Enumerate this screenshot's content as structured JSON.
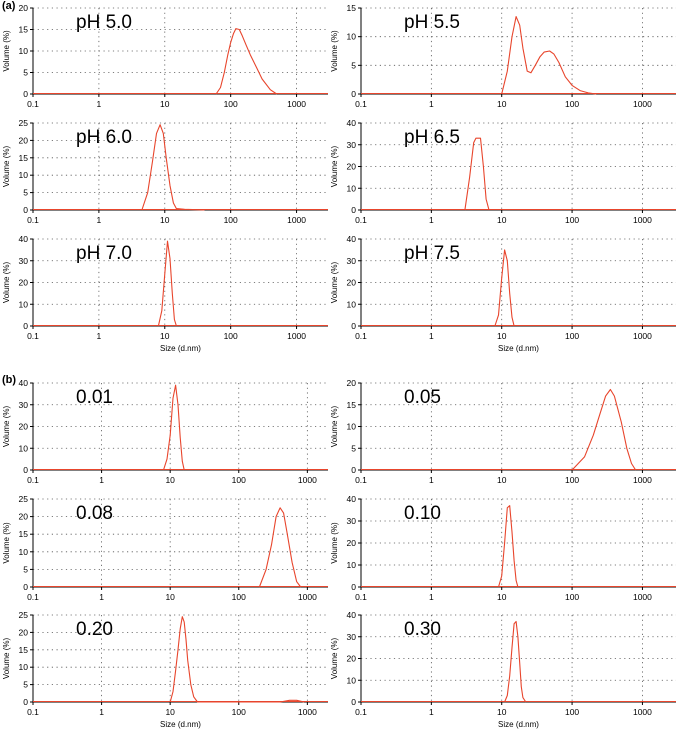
{
  "figure": {
    "panel_labels": [
      "(a)",
      "(b)"
    ],
    "xlabel": "Size (d.nm)",
    "ylabel": "Volume (%)"
  },
  "colors": {
    "curve": "#e8452c",
    "axis": "#000000",
    "grid": "#555555"
  },
  "chart_data": [
    {
      "type": "line",
      "panel": "(a)",
      "title": "pH 5.0",
      "xscale": "log",
      "xlim": [
        0.1,
        3000
      ],
      "xticks": [
        "0.1",
        "1",
        "10",
        "100",
        "1000"
      ],
      "yticks": [
        "0",
        "5",
        "10",
        "15",
        "20"
      ],
      "ylim": [
        0,
        20
      ],
      "xlabel": "",
      "ylabel": "Volume (%)",
      "grid": true,
      "x": [
        60,
        70,
        80,
        90,
        100,
        110,
        120,
        135,
        150,
        170,
        200,
        250,
        300,
        400,
        500
      ],
      "y": [
        0,
        1.5,
        5,
        9,
        12,
        14,
        15.2,
        15,
        13.5,
        11.5,
        9,
        6,
        3.5,
        1,
        0
      ]
    },
    {
      "type": "line",
      "panel": "(a)",
      "title": "pH 5.5",
      "xscale": "log",
      "xlim": [
        0.1,
        3000
      ],
      "xticks": [
        "0.1",
        "1",
        "10",
        "100",
        "1000"
      ],
      "yticks": [
        "0",
        "5",
        "10",
        "15"
      ],
      "ylim": [
        0,
        15
      ],
      "xlabel": "",
      "ylabel": "Volume (%)",
      "grid": true,
      "x": [
        10,
        12,
        14,
        16,
        18,
        20,
        23,
        26,
        30,
        35,
        40,
        48,
        55,
        65,
        80,
        100,
        130,
        170,
        220
      ],
      "y": [
        0,
        4,
        10,
        13.5,
        12,
        8,
        4,
        3.7,
        5,
        6.5,
        7.3,
        7.5,
        7,
        5.5,
        3,
        1.5,
        0.6,
        0.2,
        0
      ]
    },
    {
      "type": "line",
      "panel": "(a)",
      "title": "pH 6.0",
      "xscale": "log",
      "xlim": [
        0.1,
        3000
      ],
      "xticks": [
        "0.1",
        "1",
        "10",
        "100",
        "1000"
      ],
      "yticks": [
        "0",
        "5",
        "10",
        "15",
        "20",
        "25"
      ],
      "ylim": [
        0,
        25
      ],
      "xlabel": "",
      "ylabel": "Volume (%)",
      "grid": true,
      "x": [
        4.5,
        5.5,
        6.5,
        7.5,
        8.5,
        9.5,
        10.5,
        12,
        13.5,
        15,
        20,
        30,
        40
      ],
      "y": [
        0,
        5,
        14,
        22,
        24.5,
        22,
        15,
        7,
        2,
        0.4,
        0.2,
        0.1,
        0
      ]
    },
    {
      "type": "line",
      "panel": "(a)",
      "title": "pH 6.5",
      "xscale": "log",
      "xlim": [
        0.1,
        3000
      ],
      "xticks": [
        "0.1",
        "1",
        "10",
        "100",
        "1000"
      ],
      "yticks": [
        "0",
        "10",
        "20",
        "30",
        "40"
      ],
      "ylim": [
        0,
        40
      ],
      "xlabel": "",
      "ylabel": "Volume (%)",
      "grid": true,
      "x": [
        3,
        3.5,
        4,
        4.3,
        5,
        5.5,
        6,
        6.6
      ],
      "y": [
        0,
        15,
        31,
        33,
        33,
        20,
        5,
        0
      ]
    },
    {
      "type": "line",
      "panel": "(a)",
      "title": "pH 7.0",
      "xscale": "log",
      "xlim": [
        0.1,
        3000
      ],
      "xticks": [
        "0.1",
        "1",
        "10",
        "100",
        "1000"
      ],
      "yticks": [
        "0",
        "10",
        "20",
        "30",
        "40"
      ],
      "ylim": [
        0,
        40
      ],
      "xlabel": "Size (d.nm)",
      "ylabel": "Volume (%)",
      "grid": true,
      "x": [
        8,
        9,
        10,
        11,
        12,
        13,
        14,
        15
      ],
      "y": [
        0,
        7,
        24,
        39,
        31,
        15,
        3,
        0
      ]
    },
    {
      "type": "line",
      "panel": "(a)",
      "title": "pH 7.5",
      "xscale": "log",
      "xlim": [
        0.1,
        3000
      ],
      "xticks": [
        "0.1",
        "1",
        "10",
        "100",
        "1000"
      ],
      "yticks": [
        "0",
        "10",
        "20",
        "30",
        "40"
      ],
      "ylim": [
        0,
        40
      ],
      "xlabel": "Size (d.nm)",
      "ylabel": "Volume (%)",
      "grid": true,
      "x": [
        8,
        9,
        10,
        11,
        12,
        13,
        14,
        15
      ],
      "y": [
        0,
        5,
        22,
        35,
        30,
        15,
        4,
        0
      ]
    },
    {
      "type": "line",
      "panel": "(b)",
      "title": "0.01",
      "xscale": "log",
      "xlim": [
        0.1,
        2000
      ],
      "xticks": [
        "0.1",
        "1",
        "10",
        "100",
        "1000"
      ],
      "yticks": [
        "0",
        "10",
        "20",
        "30",
        "40"
      ],
      "ylim": [
        0,
        40
      ],
      "xlabel": "",
      "ylabel": "Volume (%)",
      "grid": true,
      "x": [
        8,
        9,
        10,
        11,
        12,
        13,
        14,
        15,
        16
      ],
      "y": [
        0,
        5,
        16,
        33,
        39,
        30,
        15,
        4,
        0
      ]
    },
    {
      "type": "line",
      "panel": "(b)",
      "title": "0.05",
      "xscale": "log",
      "xlim": [
        0.1,
        3000
      ],
      "xticks": [
        "0.1",
        "1",
        "10",
        "100",
        "1000"
      ],
      "yticks": [
        "0",
        "5",
        "10",
        "15",
        "20"
      ],
      "ylim": [
        0,
        20
      ],
      "xlabel": "",
      "ylabel": "Volume (%)",
      "grid": true,
      "x": [
        100,
        150,
        200,
        250,
        300,
        350,
        400,
        500,
        600,
        700,
        800
      ],
      "y": [
        0,
        3,
        8,
        13,
        17,
        18.5,
        17,
        11,
        5,
        1.5,
        0
      ]
    },
    {
      "type": "line",
      "panel": "(b)",
      "title": "0.08",
      "xscale": "log",
      "xlim": [
        0.1,
        2000
      ],
      "xticks": [
        "0.1",
        "1",
        "10",
        "100",
        "1000"
      ],
      "yticks": [
        "0",
        "5",
        "10",
        "15",
        "20",
        "25"
      ],
      "ylim": [
        0,
        25
      ],
      "xlabel": "",
      "ylabel": "Volume (%)",
      "grid": true,
      "x": [
        200,
        250,
        300,
        350,
        400,
        450,
        500,
        600,
        700,
        800
      ],
      "y": [
        0,
        5,
        12,
        20,
        22.5,
        21,
        16,
        7,
        1.5,
        0
      ]
    },
    {
      "type": "line",
      "panel": "(b)",
      "title": "0.10",
      "xscale": "log",
      "xlim": [
        0.1,
        3000
      ],
      "xticks": [
        "0.1",
        "1",
        "10",
        "100",
        "1000"
      ],
      "yticks": [
        "0",
        "10",
        "20",
        "30",
        "40"
      ],
      "ylim": [
        0,
        40
      ],
      "xlabel": "",
      "ylabel": "Volume (%)",
      "grid": true,
      "x": [
        9,
        10,
        11,
        12,
        13,
        14,
        15,
        16,
        17
      ],
      "y": [
        0,
        5,
        20,
        36,
        37,
        25,
        12,
        3,
        0
      ]
    },
    {
      "type": "line",
      "panel": "(b)",
      "title": "0.20",
      "xscale": "log",
      "xlim": [
        0.1,
        2000
      ],
      "xticks": [
        "0.1",
        "1",
        "10",
        "100",
        "1000"
      ],
      "yticks": [
        "0",
        "5",
        "10",
        "15",
        "20",
        "25"
      ],
      "ylim": [
        0,
        25
      ],
      "xlabel": "Size (d.nm)",
      "ylabel": "Volume (%)",
      "grid": true,
      "x": [
        10,
        11,
        12,
        13,
        14,
        15,
        16,
        17,
        18,
        20,
        22,
        25,
        400,
        550,
        700,
        900
      ],
      "y": [
        0,
        3,
        9,
        15,
        21,
        24.5,
        23,
        18,
        12,
        5,
        1.5,
        0,
        0,
        0.5,
        0.5,
        0
      ]
    },
    {
      "type": "line",
      "panel": "(b)",
      "title": "0.30",
      "xscale": "log",
      "xlim": [
        0.1,
        3000
      ],
      "xticks": [
        "0.1",
        "1",
        "10",
        "100",
        "1000"
      ],
      "yticks": [
        "0",
        "10",
        "20",
        "30",
        "40"
      ],
      "ylim": [
        0,
        40
      ],
      "xlabel": "Size (d.nm)",
      "ylabel": "Volume (%)",
      "grid": true,
      "x": [
        11,
        12,
        13,
        14,
        15,
        16,
        17,
        18,
        19,
        20,
        22
      ],
      "y": [
        0,
        3,
        12,
        25,
        36,
        37,
        30,
        18,
        7,
        2,
        0
      ]
    }
  ]
}
